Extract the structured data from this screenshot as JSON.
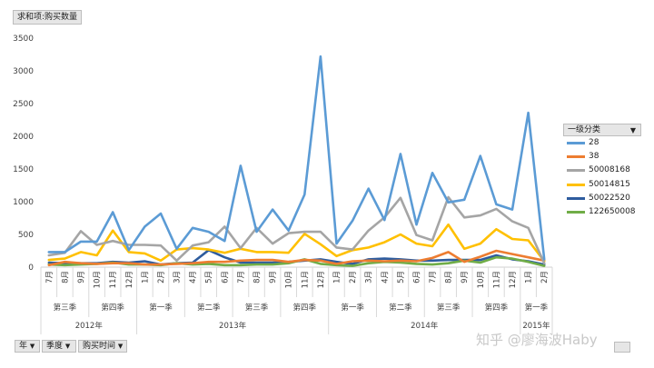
{
  "field_button": "求和项:购买数量",
  "legend_title": "一级分类",
  "filter_buttons": [
    "年",
    "季度",
    "购买时间"
  ],
  "watermark": "知乎 @廖海波Haby",
  "chart_data": {
    "type": "line",
    "ylim": [
      0,
      3500
    ],
    "yticks": [
      0,
      500,
      1000,
      1500,
      2000,
      2500,
      3000,
      3500
    ],
    "grid": false,
    "legend_position": "right",
    "categories": [
      "7月",
      "8月",
      "9月",
      "10月",
      "11月",
      "12月",
      "1月",
      "2月",
      "3月",
      "4月",
      "5月",
      "6月",
      "7月",
      "8月",
      "9月",
      "10月",
      "11月",
      "12月",
      "1月",
      "2月",
      "3月",
      "4月",
      "5月",
      "6月",
      "7月",
      "8月",
      "9月",
      "10月",
      "11月",
      "12月",
      "1月",
      "2月"
    ],
    "quarters": [
      {
        "label": "第三季",
        "span": 3
      },
      {
        "label": "第四季",
        "span": 3
      },
      {
        "label": "第一季",
        "span": 3
      },
      {
        "label": "第二季",
        "span": 3
      },
      {
        "label": "第三季",
        "span": 3
      },
      {
        "label": "第四季",
        "span": 3
      },
      {
        "label": "第一季",
        "span": 3
      },
      {
        "label": "第二季",
        "span": 3
      },
      {
        "label": "第三季",
        "span": 3
      },
      {
        "label": "第四季",
        "span": 3
      },
      {
        "label": "第一季",
        "span": 2
      }
    ],
    "years": [
      {
        "label": "2012年",
        "span": 6
      },
      {
        "label": "2013年",
        "span": 12
      },
      {
        "label": "2014年",
        "span": 12
      },
      {
        "label": "2015年",
        "span": 2
      }
    ],
    "series": [
      {
        "name": "28",
        "color": "#5b9bd5",
        "values": [
          230,
          230,
          390,
          390,
          840,
          260,
          620,
          820,
          280,
          600,
          540,
          400,
          1550,
          540,
          880,
          560,
          1110,
          3220,
          360,
          710,
          1200,
          720,
          1730,
          650,
          1440,
          990,
          1030,
          1700,
          960,
          880,
          2360,
          120
        ]
      },
      {
        "name": "38",
        "color": "#ed7d31",
        "values": [
          30,
          80,
          60,
          50,
          60,
          60,
          40,
          40,
          50,
          60,
          80,
          80,
          100,
          110,
          110,
          80,
          110,
          100,
          50,
          90,
          100,
          90,
          100,
          90,
          140,
          230,
          80,
          160,
          250,
          200,
          150,
          100
        ]
      },
      {
        "name": "50008168",
        "color": "#a5a5a5",
        "values": [
          180,
          220,
          550,
          340,
          400,
          340,
          340,
          330,
          100,
          330,
          380,
          620,
          290,
          600,
          360,
          520,
          540,
          540,
          300,
          270,
          560,
          760,
          1060,
          490,
          410,
          1070,
          760,
          790,
          890,
          700,
          600,
          60
        ]
      },
      {
        "name": "50014815",
        "color": "#ffc000",
        "values": [
          110,
          130,
          230,
          180,
          560,
          230,
          210,
          100,
          270,
          290,
          270,
          220,
          280,
          230,
          230,
          220,
          510,
          350,
          170,
          260,
          300,
          380,
          500,
          360,
          320,
          650,
          280,
          360,
          580,
          430,
          410,
          90
        ]
      },
      {
        "name": "50022520",
        "color": "#2e5c9e",
        "values": [
          70,
          60,
          60,
          60,
          80,
          70,
          90,
          40,
          60,
          70,
          260,
          150,
          70,
          70,
          70,
          80,
          100,
          120,
          80,
          50,
          120,
          130,
          120,
          100,
          100,
          110,
          110,
          110,
          180,
          120,
          90,
          40
        ]
      },
      {
        "name": "122650008",
        "color": "#70ad47",
        "values": [
          40,
          30,
          40,
          50,
          70,
          40,
          40,
          30,
          60,
          40,
          50,
          30,
          30,
          40,
          40,
          60,
          120,
          50,
          30,
          20,
          60,
          80,
          70,
          50,
          40,
          60,
          100,
          70,
          150,
          130,
          80,
          20
        ]
      }
    ]
  }
}
